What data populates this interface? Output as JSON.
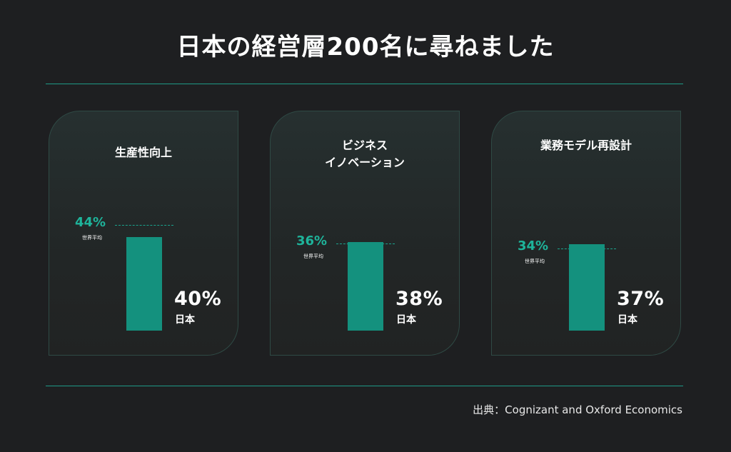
{
  "title": "日本の経営層200名に尋ねました",
  "source": "出典：Cognizant and Oxford Economics",
  "colors": {
    "background": "#1e1f21",
    "accent": "#1eb49b",
    "bar": "#14917e",
    "text": "#ffffff"
  },
  "chart_data": [
    {
      "type": "bar",
      "title": "生産性向上",
      "categories": [
        "日本"
      ],
      "values": [
        40
      ],
      "reference": {
        "label": "世界平均",
        "value": 44
      },
      "value_labels": {
        "japan": "40%",
        "global": "44%"
      }
    },
    {
      "type": "bar",
      "title": "ビジネス\nイノベーション",
      "categories": [
        "日本"
      ],
      "values": [
        38
      ],
      "reference": {
        "label": "世界平均",
        "value": 36
      },
      "value_labels": {
        "japan": "38%",
        "global": "36%"
      }
    },
    {
      "type": "bar",
      "title": "業務モデル再設計",
      "categories": [
        "日本"
      ],
      "values": [
        37
      ],
      "reference": {
        "label": "世界平均",
        "value": 34
      },
      "value_labels": {
        "japan": "37%",
        "global": "34%"
      }
    }
  ]
}
